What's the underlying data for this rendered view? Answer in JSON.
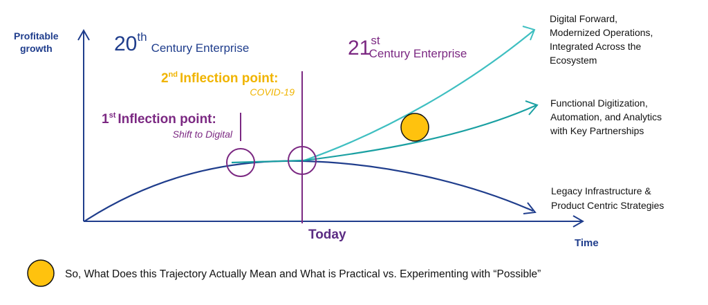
{
  "axes": {
    "y_label_lines": [
      "Profitable",
      "growth"
    ],
    "x_label": "Time"
  },
  "eras": {
    "e20": {
      "number": "20",
      "suffix": "th",
      "label": "Century Enterprise"
    },
    "e21": {
      "number": "21",
      "suffix": "st",
      "label": "Century Enterprise"
    }
  },
  "inflections": {
    "first": {
      "ordinal": "1",
      "ordinal_suffix": "st",
      "title": "Inflection point:",
      "subtitle": "Shift to Digital"
    },
    "second": {
      "ordinal": "2",
      "ordinal_suffix": "nd",
      "title": "Inflection point:",
      "subtitle": "COVID-19"
    }
  },
  "today_label": "Today",
  "outcomes": {
    "top": [
      "Digital Forward,",
      "Modernized Operations,",
      "Integrated Across the",
      "Ecosystem"
    ],
    "middle": [
      "Functional Digitization,",
      "Automation, and Analytics",
      "with Key Partnerships"
    ],
    "bottom": [
      "Legacy Infrastructure &",
      "Product Centric Strategies"
    ]
  },
  "footer_text": "So, What Does this Trajectory Actually Mean and What is Practical vs. Experimenting with “Possible”",
  "colors": {
    "navy": "#1f3d8c",
    "purple": "#7b2882",
    "gold": "#f0b400",
    "teal_light": "#3fbfc1",
    "teal_dark": "#1aa0a2",
    "marker_fill": "#ffc20e"
  }
}
